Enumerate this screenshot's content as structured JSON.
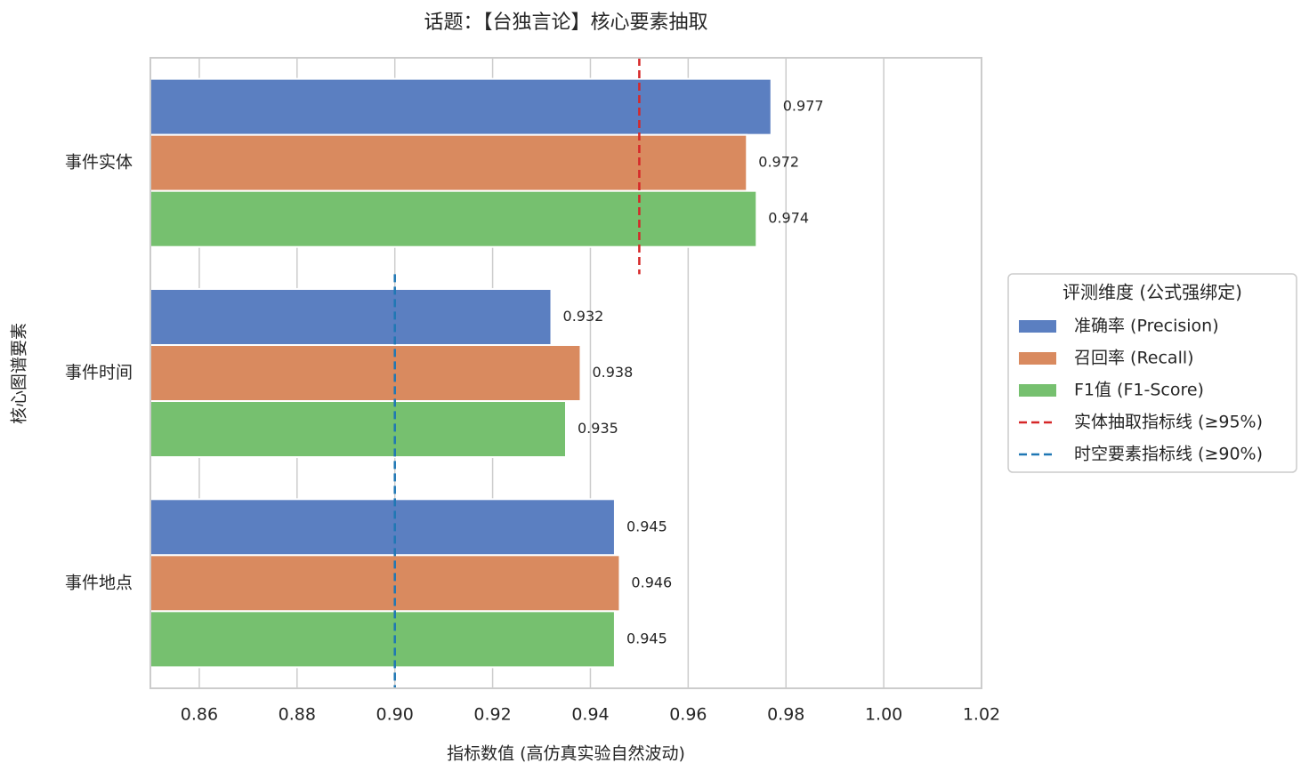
{
  "chart_data": {
    "type": "barh",
    "title": "话题：【台独言论】核心要素抽取",
    "x_label": "指标数值 (高仿真实验自然波动)",
    "y_label": "核心图谱要素",
    "categories": [
      "事件实体",
      "事件时间",
      "事件地点"
    ],
    "series": [
      {
        "name": "准确率 (Precision)",
        "color": "#5b7fc1",
        "values": [
          0.977,
          0.932,
          0.945
        ]
      },
      {
        "name": "召回率 (Recall)",
        "color": "#d98a5f",
        "values": [
          0.972,
          0.938,
          0.946
        ]
      },
      {
        "name": "F1值 (F1-Score)",
        "color": "#76c06f",
        "values": [
          0.974,
          0.935,
          0.945
        ]
      }
    ],
    "reference_lines": [
      {
        "name": "实体抽取指标线 (≥95%)",
        "color": "#d62728",
        "value": 0.95
      },
      {
        "name": "时空要素指标线 (≥90%)",
        "color": "#1f77b4",
        "value": 0.9
      }
    ],
    "xlim": [
      0.85,
      1.02
    ],
    "xticks": [
      0.86,
      0.88,
      {
        "value": 0.9,
        "label": "0.90"
      },
      0.92,
      0.94,
      0.96,
      0.98,
      {
        "value": 1,
        "label": "1.00"
      },
      1.02
    ],
    "grid": true,
    "legend_title": "评测维度 (公式强绑定)",
    "legend_position": "center right outside"
  }
}
